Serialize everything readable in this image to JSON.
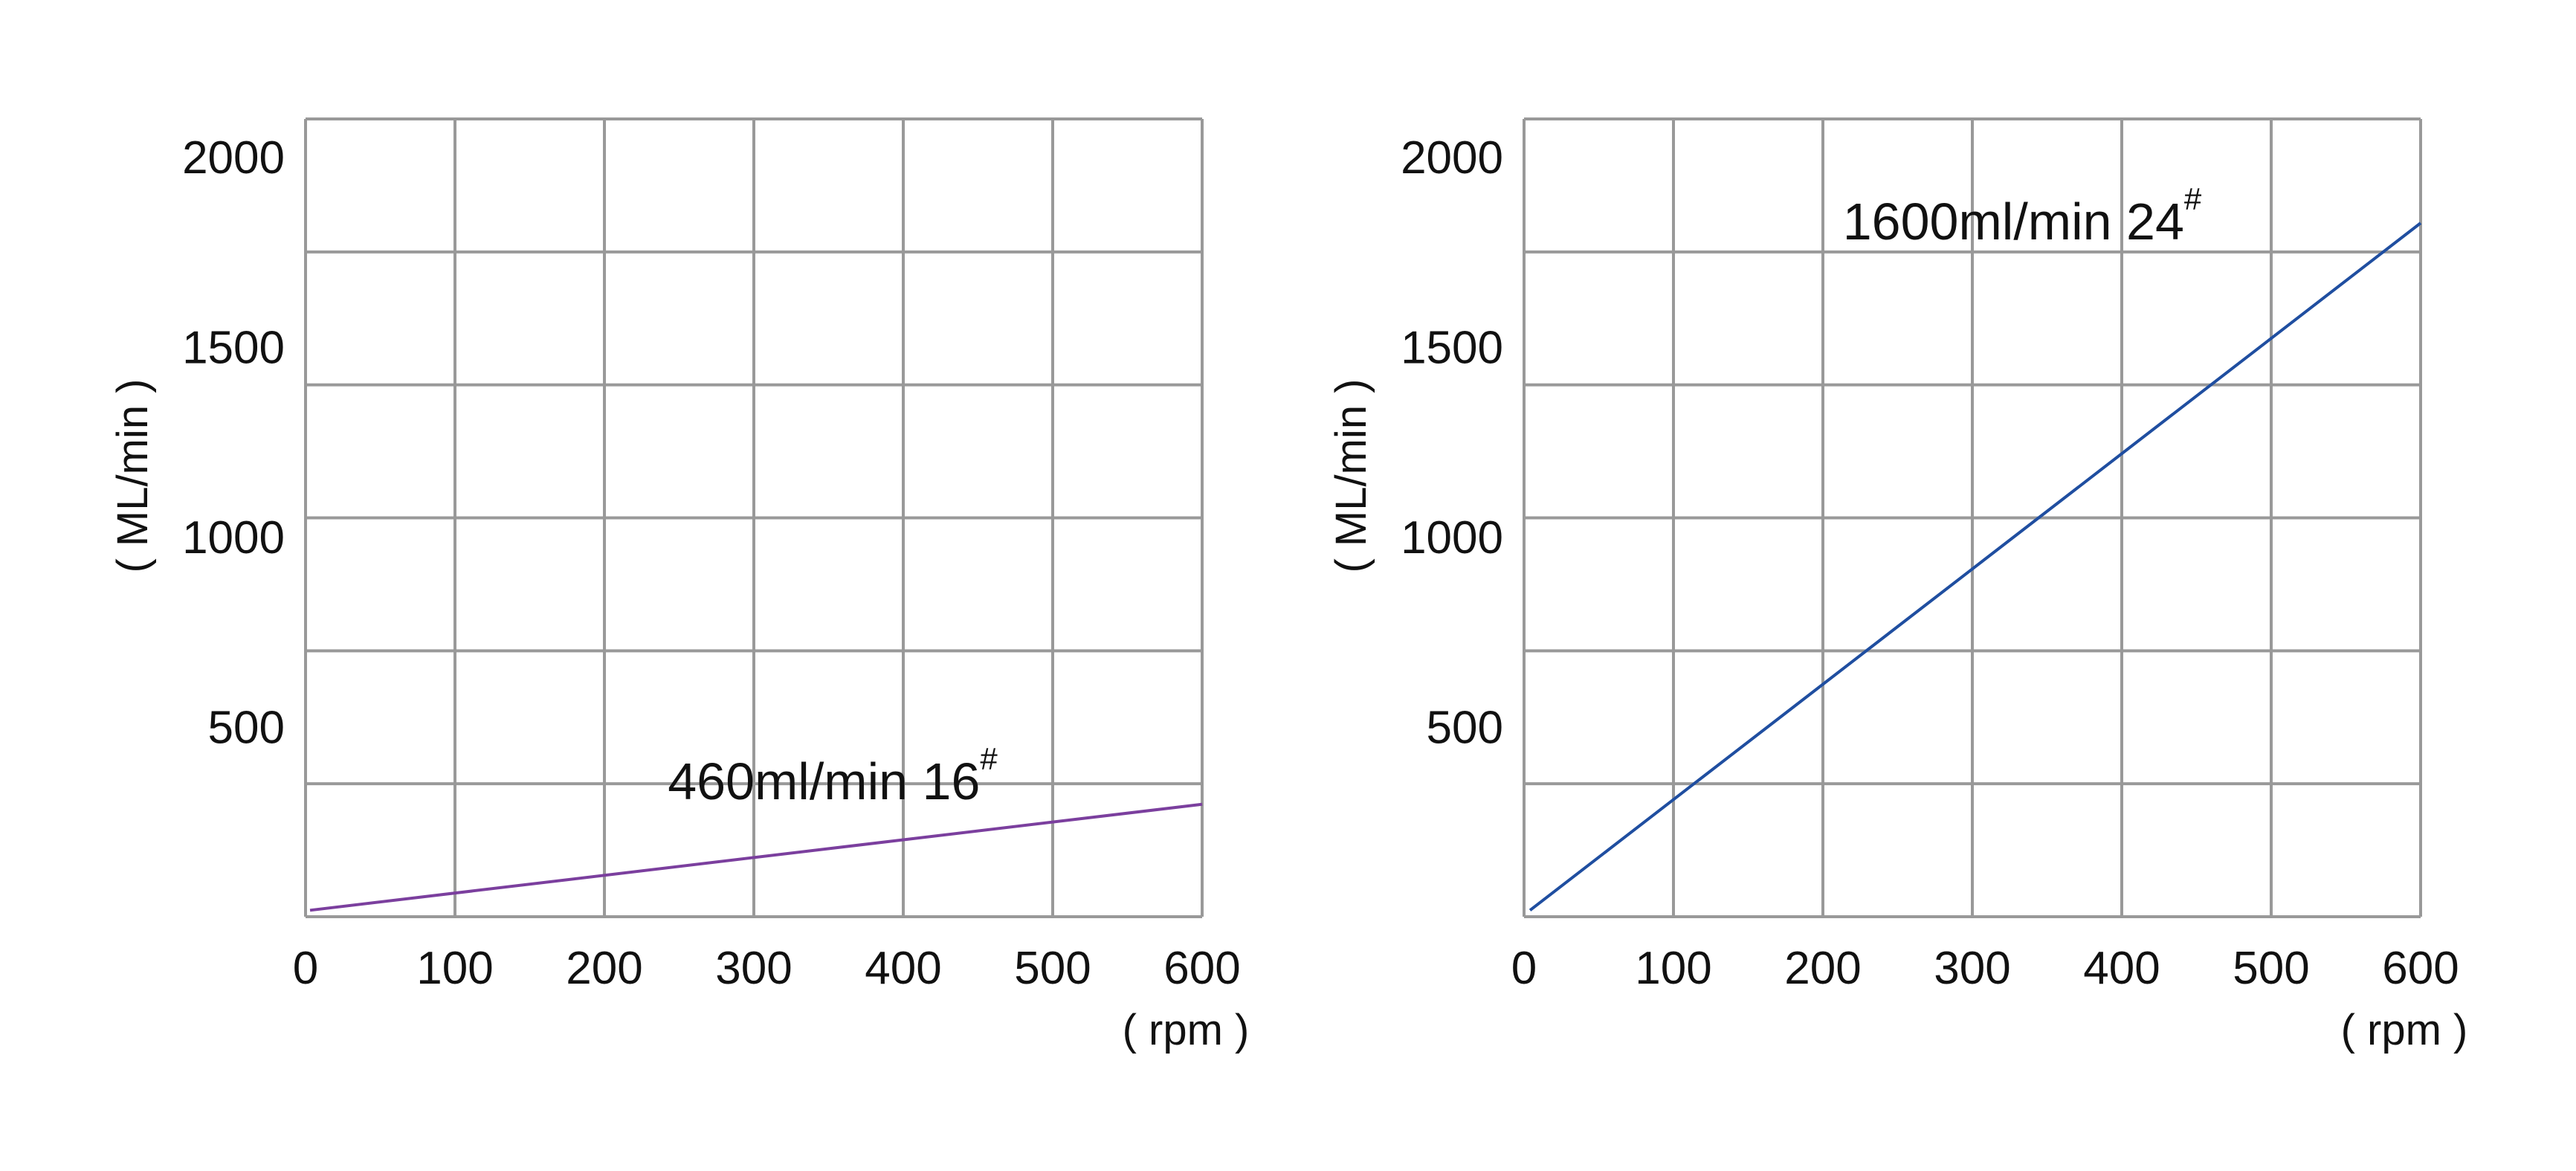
{
  "chart_data": [
    {
      "type": "line",
      "xlabel": "( rpm )",
      "ylabel": "( ML/min )",
      "xlim": [
        0,
        600
      ],
      "ylim": [
        0,
        2100
      ],
      "x_ticks": [
        0,
        100,
        200,
        300,
        400,
        500,
        600
      ],
      "y_ticks": [
        500,
        1000,
        1500,
        2000
      ],
      "grid": true,
      "grid_divisions": {
        "x": 6,
        "y": 6
      },
      "series": [
        {
          "x": [
            3,
            600
          ],
          "y": [
            17,
            296
          ],
          "color": "#7b3f9e"
        }
      ],
      "annotation": {
        "text": "460ml/min  16",
        "sup": "#"
      },
      "grid_color": "#999999"
    },
    {
      "type": "line",
      "xlabel": "( rpm )",
      "ylabel": "( ML/min )",
      "xlim": [
        0,
        600
      ],
      "ylim": [
        0,
        2100
      ],
      "x_ticks": [
        0,
        100,
        200,
        300,
        400,
        500,
        600
      ],
      "y_ticks": [
        500,
        1000,
        1500,
        2000
      ],
      "grid": true,
      "grid_divisions": {
        "x": 6,
        "y": 6
      },
      "series": [
        {
          "x": [
            4,
            600
          ],
          "y": [
            17,
            1826
          ],
          "color": "#1f4ea0"
        }
      ],
      "annotation": {
        "text": "1600ml/min  24",
        "sup": "#"
      },
      "grid_color": "#999999"
    }
  ]
}
